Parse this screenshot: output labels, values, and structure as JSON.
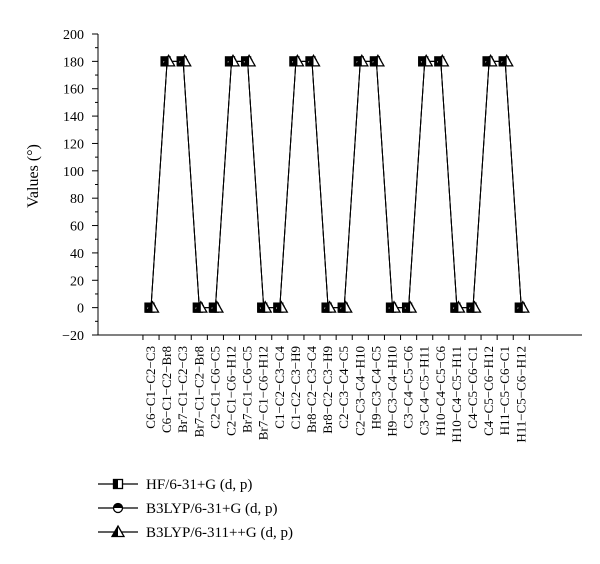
{
  "chart_data": {
    "type": "line",
    "ylabel": "Values (°)",
    "ylim": [
      -20,
      200
    ],
    "yticks": [
      -20,
      0,
      20,
      40,
      60,
      80,
      100,
      120,
      140,
      160,
      180,
      200
    ],
    "categories": [
      "C6−C1−C2−C3",
      "C6−C1−C2−Br8",
      "Br7−C1−C2−C3",
      "Br7−C1−C2−Br8",
      "C2−C1−C6−C5",
      "C2−C1−C6−H12",
      "Br7−C1−C6−C5",
      "Br7−C1−C6−H12",
      "C1−C2−C3−C4",
      "C1−C2−C3−H9",
      "Br8−C2−C3−C4",
      "Br8−C2−C3−H9",
      "C2−C3−C4−C5",
      "C2−C3−C4−H10",
      "H9−C3−C4−C5",
      "H9−C3−C4−H10",
      "C3−C4−C5−C6",
      "C3−C4−C5−H11",
      "H10−C4−C5−C6",
      "H10−C4−C5−H11",
      "C4−C5−C6−C1",
      "C4−C5−C6−H12",
      "H11−C5−C6−C1",
      "H11−C5−C6−H12"
    ],
    "series": [
      {
        "name": "HF/6-31+G (d, p)",
        "marker": "square",
        "values": [
          0,
          180,
          180,
          0,
          0,
          180,
          180,
          0,
          0,
          180,
          180,
          0,
          0,
          180,
          180,
          0,
          0,
          180,
          180,
          0,
          0,
          180,
          180,
          0
        ]
      },
      {
        "name": "B3LYP/6-31+G (d, p)",
        "marker": "circle",
        "values": [
          0,
          180,
          180,
          0,
          0,
          180,
          180,
          0,
          0,
          180,
          180,
          0,
          0,
          180,
          180,
          0,
          0,
          180,
          180,
          0,
          0,
          180,
          180,
          0
        ]
      },
      {
        "name": "B3LYP/6-311++G (d, p)",
        "marker": "triangle",
        "values": [
          0,
          180,
          180,
          0,
          0,
          180,
          180,
          0,
          0,
          180,
          180,
          0,
          0,
          180,
          180,
          0,
          0,
          180,
          180,
          0,
          0,
          180,
          180,
          0
        ]
      }
    ],
    "legend_position": "bottom-left",
    "grid": false
  }
}
